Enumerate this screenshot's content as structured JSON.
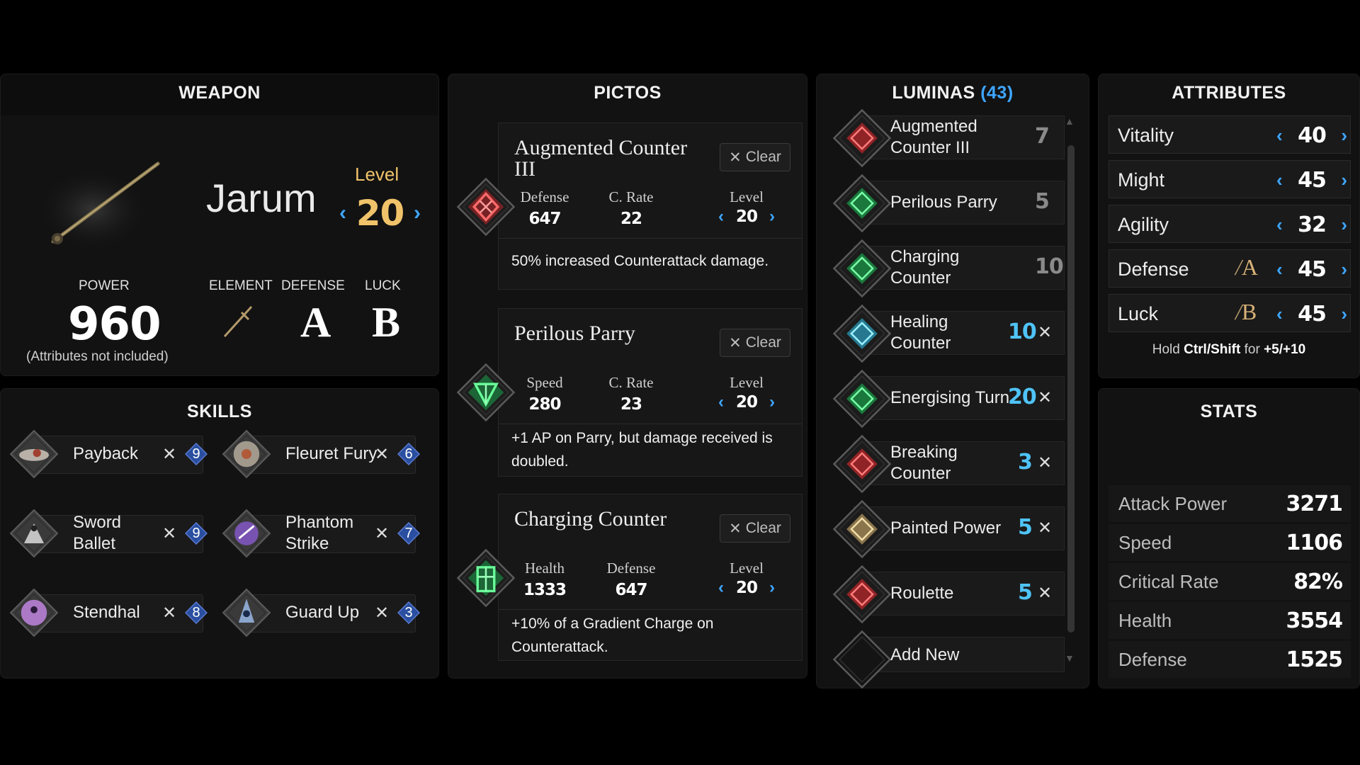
{
  "weapon": {
    "title": "WEAPON",
    "name": "Jarum",
    "level_label": "Level",
    "level": "20",
    "power_label": "POWER",
    "power": "960",
    "power_note": "(Attributes not included)",
    "element_label": "ELEMENT",
    "defense_label": "DEFENSE",
    "defense_grade": "A",
    "luck_label": "LUCK",
    "luck_grade": "B"
  },
  "skills": {
    "title": "SKILLS",
    "items": [
      {
        "name": "Payback",
        "cost": "9",
        "icon": "payback-skill-icon"
      },
      {
        "name": "Fleuret Fury",
        "cost": "6",
        "icon": "fleuret-fury-skill-icon"
      },
      {
        "name": "Sword Ballet",
        "cost": "9",
        "icon": "sword-ballet-skill-icon"
      },
      {
        "name": "Phantom Strike",
        "cost": "7",
        "icon": "phantom-strike-skill-icon"
      },
      {
        "name": "Stendhal",
        "cost": "8",
        "icon": "stendhal-skill-icon"
      },
      {
        "name": "Guard Up",
        "cost": "3",
        "icon": "guard-up-skill-icon"
      }
    ],
    "remove_glyph": "✕"
  },
  "pictos": {
    "title": "PICTOS",
    "clear_label": "Clear",
    "clear_glyph": "✕",
    "level_label": "Level",
    "items": [
      {
        "name": "Augmented Counter III",
        "stat1_label": "Defense",
        "stat1_value": "647",
        "stat2_label": "C. Rate",
        "stat2_value": "22",
        "level": "20",
        "description": "50% increased Counterattack damage."
      },
      {
        "name": "Perilous Parry",
        "stat1_label": "Speed",
        "stat1_value": "280",
        "stat2_label": "C. Rate",
        "stat2_value": "23",
        "level": "20",
        "description": "+1 AP on Parry, but damage received is doubled."
      },
      {
        "name": "Charging Counter",
        "stat1_label": "Health",
        "stat1_value": "1333",
        "stat2_label": "Defense",
        "stat2_value": "647",
        "level": "20",
        "description": "+10% of a Gradient Charge on Counterattack."
      }
    ]
  },
  "luminas": {
    "title": "LUMINAS",
    "count": "(43)",
    "remove_glyph": "✕",
    "items": [
      {
        "name": "Augmented Counter III",
        "cost": "7",
        "equipped_from_picto": true
      },
      {
        "name": "Perilous Parry",
        "cost": "5",
        "equipped_from_picto": true
      },
      {
        "name": "Charging Counter",
        "cost": "10",
        "equipped_from_picto": true
      },
      {
        "name": "Healing Counter",
        "cost": "10",
        "equipped_from_picto": false
      },
      {
        "name": "Energising Turn",
        "cost": "20",
        "equipped_from_picto": false
      },
      {
        "name": "Breaking Counter",
        "cost": "3",
        "equipped_from_picto": false
      },
      {
        "name": "Painted Power",
        "cost": "5",
        "equipped_from_picto": false
      },
      {
        "name": "Roulette",
        "cost": "5",
        "equipped_from_picto": false
      }
    ],
    "add_new_label": "Add New"
  },
  "attributes": {
    "title": "ATTRIBUTES",
    "items": [
      {
        "name": "Vitality",
        "value": "40",
        "grade": ""
      },
      {
        "name": "Might",
        "value": "45",
        "grade": ""
      },
      {
        "name": "Agility",
        "value": "32",
        "grade": ""
      },
      {
        "name": "Defense",
        "value": "45",
        "grade": "A"
      },
      {
        "name": "Luck",
        "value": "45",
        "grade": "B"
      }
    ],
    "hint_prefix": "Hold",
    "hint_keys": "Ctrl/Shift",
    "hint_mid": "for",
    "hint_amounts": "+5/+10"
  },
  "stats": {
    "title": "STATS",
    "items": [
      {
        "name": "Attack Power",
        "value": "3271"
      },
      {
        "name": "Speed",
        "value": "1106"
      },
      {
        "name": "Critical Rate",
        "value": "82%"
      },
      {
        "name": "Health",
        "value": "3554"
      },
      {
        "name": "Defense",
        "value": "1525"
      }
    ]
  },
  "colors": {
    "accent_blue": "#3ea6ff",
    "gold": "#f0c36a",
    "lumina_cost_picto": "#8a8a8a",
    "lumina_cost_active": "#4fc3f7"
  }
}
